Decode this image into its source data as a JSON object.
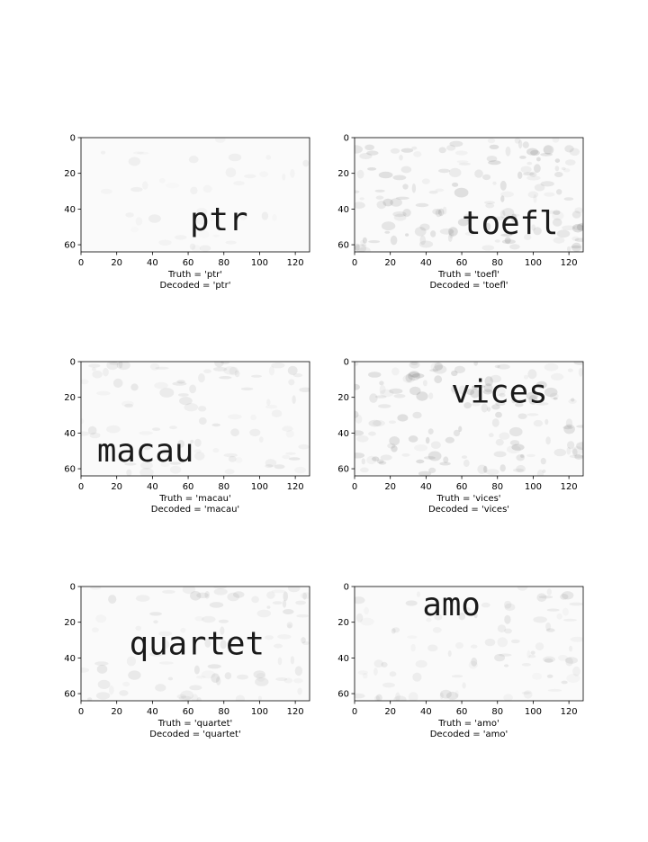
{
  "chart_data": [
    {
      "type": "image",
      "image_text": "ptr",
      "truth_label": "Truth = 'ptr'",
      "decoded_label": "Decoded = 'ptr'",
      "x_ticks": [
        "0",
        "20",
        "40",
        "60",
        "80",
        "100",
        "120"
      ],
      "y_ticks": [
        "0",
        "20",
        "40",
        "60"
      ],
      "xlim": [
        0,
        128
      ],
      "ylim": [
        64,
        0
      ],
      "noise_level": "light",
      "text_position": {
        "x": 61,
        "y": 52
      },
      "text_size": 18
    },
    {
      "type": "image",
      "image_text": "toefl",
      "truth_label": "Truth = 'toefl'",
      "decoded_label": "Decoded = 'toefl'",
      "x_ticks": [
        "0",
        "20",
        "40",
        "60",
        "80",
        "100",
        "120"
      ],
      "y_ticks": [
        "0",
        "20",
        "40",
        "60"
      ],
      "xlim": [
        0,
        128
      ],
      "ylim": [
        64,
        0
      ],
      "noise_level": "heavy",
      "text_position": {
        "x": 60,
        "y": 54
      },
      "text_size": 18
    },
    {
      "type": "image",
      "image_text": "macau",
      "truth_label": "Truth = 'macau'",
      "decoded_label": "Decoded = 'macau'",
      "x_ticks": [
        "0",
        "20",
        "40",
        "60",
        "80",
        "100",
        "120"
      ],
      "y_ticks": [
        "0",
        "20",
        "40",
        "60"
      ],
      "xlim": [
        0,
        128
      ],
      "ylim": [
        64,
        0
      ],
      "noise_level": "medium",
      "text_position": {
        "x": 9,
        "y": 56
      },
      "text_size": 18
    },
    {
      "type": "image",
      "image_text": "vices",
      "truth_label": "Truth = 'vices'",
      "decoded_label": "Decoded = 'vices'",
      "x_ticks": [
        "0",
        "20",
        "40",
        "60",
        "80",
        "100",
        "120"
      ],
      "y_ticks": [
        "0",
        "20",
        "40",
        "60"
      ],
      "xlim": [
        0,
        128
      ],
      "ylim": [
        64,
        0
      ],
      "noise_level": "heavy",
      "text_position": {
        "x": 54,
        "y": 23
      },
      "text_size": 18
    },
    {
      "type": "image",
      "image_text": "quartet",
      "truth_label": "Truth = 'quartet'",
      "decoded_label": "Decoded = 'quartet'",
      "x_ticks": [
        "0",
        "20",
        "40",
        "60",
        "80",
        "100",
        "120"
      ],
      "y_ticks": [
        "0",
        "20",
        "40",
        "60"
      ],
      "xlim": [
        0,
        128
      ],
      "ylim": [
        64,
        0
      ],
      "noise_level": "medium",
      "text_position": {
        "x": 27,
        "y": 38
      },
      "text_size": 18
    },
    {
      "type": "image",
      "image_text": "amo",
      "truth_label": "Truth = 'amo'",
      "decoded_label": "Decoded = 'amo'",
      "x_ticks": [
        "0",
        "20",
        "40",
        "60",
        "80",
        "100",
        "120"
      ],
      "y_ticks": [
        "0",
        "20",
        "40",
        "60"
      ],
      "xlim": [
        0,
        128
      ],
      "ylim": [
        64,
        0
      ],
      "noise_level": "medium",
      "text_position": {
        "x": 38,
        "y": 16
      },
      "text_size": 18
    }
  ]
}
